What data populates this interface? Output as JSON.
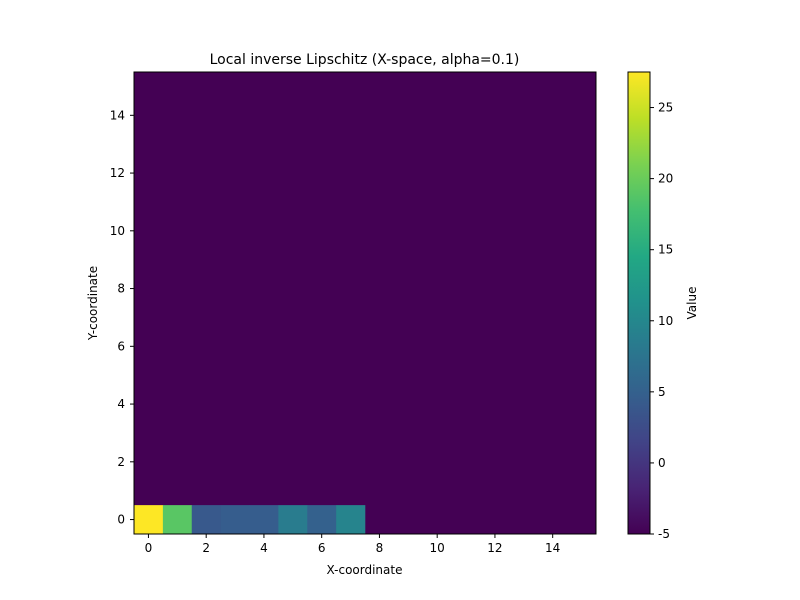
{
  "chart_data": {
    "type": "heatmap",
    "title": "Local inverse Lipschitz (X-space, alpha=0.1)",
    "xlabel": "X-coordinate",
    "ylabel": "Y-coordinate",
    "xlim": [
      -0.5,
      15.5
    ],
    "ylim": [
      -0.5,
      15.5
    ],
    "xticks": [
      "0",
      "2",
      "4",
      "6",
      "8",
      "10",
      "12",
      "14"
    ],
    "yticks": [
      "0",
      "2",
      "4",
      "6",
      "8",
      "10",
      "12",
      "14"
    ],
    "grid": false,
    "colormap": "viridis",
    "background_value": -5,
    "cells": [
      {
        "x": 0,
        "y": 0,
        "value": 27.5
      },
      {
        "x": 1,
        "y": 0,
        "value": 19.0
      },
      {
        "x": 2,
        "y": 0,
        "value": 4.0
      },
      {
        "x": 3,
        "y": 0,
        "value": 4.5
      },
      {
        "x": 4,
        "y": 0,
        "value": 4.5
      },
      {
        "x": 5,
        "y": 0,
        "value": 8.5
      },
      {
        "x": 6,
        "y": 0,
        "value": 5.0
      },
      {
        "x": 7,
        "y": 0,
        "value": 9.5
      }
    ],
    "colorbar": {
      "label": "Value",
      "range": [
        -5,
        27.5
      ],
      "ticks": [
        "-5",
        "0",
        "5",
        "10",
        "15",
        "20",
        "25"
      ]
    }
  }
}
